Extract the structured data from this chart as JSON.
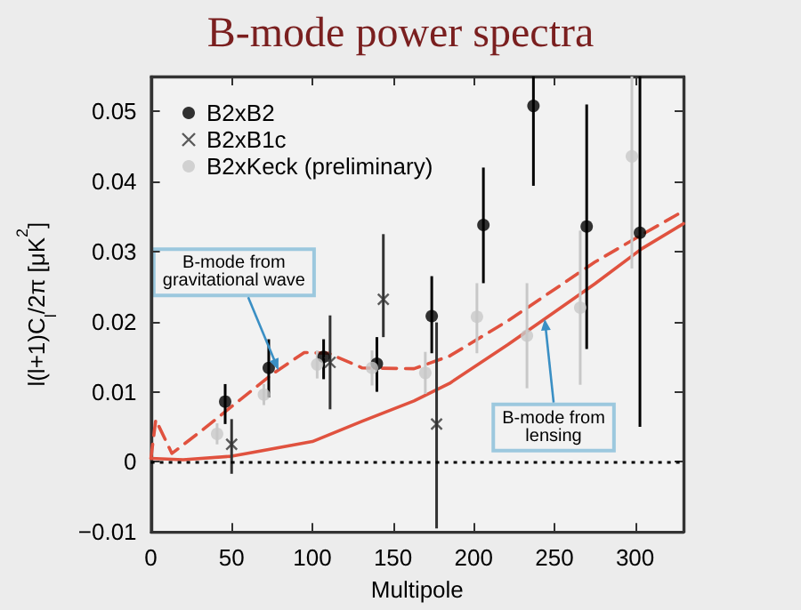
{
  "chart_data": {
    "type": "scatter",
    "title": "B-mode power spectra",
    "xlabel": "Multipole",
    "ylabel": "l(l+1)C$_{l}$/2π [μK$^{2}$]",
    "xlim": [
      0,
      330
    ],
    "xticks": [
      0,
      50,
      100,
      150,
      200,
      250,
      300
    ],
    "ylim": [
      -0.01,
      0.055
    ],
    "yticks": [
      -0.01,
      0,
      0.01,
      0.02,
      0.03,
      0.04,
      0.05
    ],
    "grid": false,
    "legend": "top left",
    "series": [
      {
        "name": "B2xB2",
        "type": "scatter",
        "marker": "circle",
        "color": "#000000",
        "x": [
          46,
          73,
          107,
          140,
          174,
          206,
          237,
          270,
          303
        ],
        "values": [
          0.0086,
          0.0134,
          0.015,
          0.014,
          0.0208,
          0.0338,
          0.0508,
          0.0336,
          0.0327
        ],
        "errors": [
          [
            0.0054,
            0.0111
          ],
          [
            0.0092,
            0.0175
          ],
          [
            0.0118,
            0.0175
          ],
          [
            0.01,
            0.0178
          ],
          [
            0.0155,
            0.0265
          ],
          [
            0.0255,
            0.042
          ],
          [
            0.0394,
            0.055
          ],
          [
            0.0161,
            0.051
          ],
          [
            0.005,
            0.055
          ]
        ]
      },
      {
        "name": "B2xB1c",
        "type": "scatter",
        "marker": "cross",
        "color": "#333333",
        "x": [
          50,
          111,
          144,
          177
        ],
        "values": [
          0.0025,
          0.0142,
          0.0232,
          0.0054
        ],
        "errors": [
          [
            -0.0017,
            0.0061
          ],
          [
            0.0075,
            0.0209
          ],
          [
            0.0178,
            0.0325
          ],
          [
            -0.0095,
            0.0199
          ]
        ]
      },
      {
        "name": "B2xKeck (preliminary)",
        "type": "scatter",
        "marker": "circle",
        "color": "#c8c8c8",
        "x": [
          41,
          70,
          103,
          137,
          170,
          202,
          233,
          266,
          298
        ],
        "values": [
          0.004,
          0.0096,
          0.0139,
          0.0134,
          0.0127,
          0.0207,
          0.018,
          0.022,
          0.0436
        ],
        "errors": [
          [
            0.0025,
            0.0055
          ],
          [
            0.0081,
            0.0111
          ],
          [
            0.0119,
            0.0159
          ],
          [
            0.0109,
            0.0159
          ],
          [
            0.0097,
            0.0157
          ],
          [
            0.0155,
            0.0255
          ],
          [
            0.0105,
            0.0255
          ],
          [
            0.011,
            0.033
          ],
          [
            0.0276,
            0.055
          ]
        ]
      },
      {
        "type": "line",
        "line_style": "dashed",
        "marker": "none",
        "color": "#e0523f",
        "x": [
          0,
          3,
          13,
          30,
          50,
          75,
          95,
          110,
          131,
          163,
          185,
          221,
          239,
          275,
          304,
          330
        ],
        "values": [
          0.0005,
          0.006,
          0.0012,
          0.0042,
          0.0079,
          0.0125,
          0.0156,
          0.0155,
          0.0134,
          0.0133,
          0.0151,
          0.0201,
          0.0229,
          0.0285,
          0.0324,
          0.0358
        ]
      },
      {
        "type": "line",
        "line_style": "solid",
        "marker": "none",
        "color": "#e0523f",
        "x": [
          0,
          20,
          50,
          100,
          131,
          163,
          185,
          221,
          239,
          275,
          304,
          330
        ],
        "values": [
          0.0005,
          0.0003,
          0.0008,
          0.0029,
          0.0058,
          0.0087,
          0.0112,
          0.0167,
          0.0196,
          0.0254,
          0.0304,
          0.034
        ]
      }
    ],
    "ref_lines": [
      {
        "axis": "y",
        "value": 0,
        "color": "#000000",
        "line_style": "dotted"
      }
    ],
    "annotations": [
      {
        "text": "B-mode from\ngravitational wave",
        "x": 79,
        "y": 0.0131
      },
      {
        "text": "B-mode from\nlensing",
        "x": 244,
        "y": 0.0204
      }
    ]
  }
}
